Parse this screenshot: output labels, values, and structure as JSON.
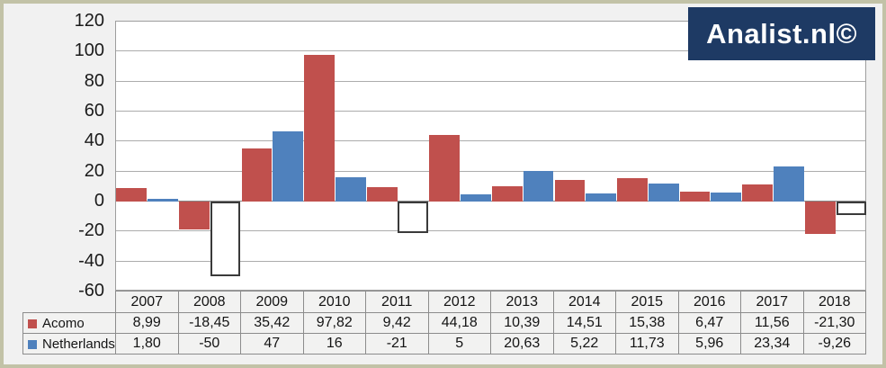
{
  "logo": {
    "text": "Analist.nl©"
  },
  "colors": {
    "acomo": "#C0504D",
    "netherlands": "#4F81BD",
    "logo_bg": "#1E3A64",
    "logo_text": "#FFFFFF",
    "page_bg": "#F1F1F1",
    "frame_border": "#C2C2A7",
    "gridline": "#ACACAC",
    "zero_line": "#878787",
    "table_border": "#8C8C8C",
    "negative_invert_fill": "#FFFFFF",
    "negative_invert_border": "#3A3A3A"
  },
  "chart_data": {
    "type": "bar",
    "title": "",
    "xlabel": "",
    "ylabel": "",
    "categories": [
      "2007",
      "2008",
      "2009",
      "2010",
      "2011",
      "2012",
      "2013",
      "2014",
      "2015",
      "2016",
      "2017",
      "2018"
    ],
    "series": [
      {
        "name": "Acomo",
        "color_key": "acomo",
        "invert_if_negative": false,
        "values": [
          8.99,
          -18.45,
          35.42,
          97.82,
          9.42,
          44.18,
          10.39,
          14.51,
          15.38,
          6.47,
          11.56,
          -21.3
        ]
      },
      {
        "name": "Netherlands",
        "color_key": "netherlands",
        "invert_if_negative": true,
        "values": [
          1.8,
          -50,
          47,
          16,
          -21,
          5,
          20.63,
          5.22,
          11.73,
          5.96,
          23.34,
          -9.26
        ]
      }
    ],
    "ylim": [
      -60,
      120
    ],
    "yticks": [
      120,
      100,
      80,
      60,
      40,
      20,
      0,
      -20,
      -40,
      -60
    ],
    "grid": true,
    "legend_position": "table-left-column"
  },
  "table": {
    "years": [
      "2007",
      "2008",
      "2009",
      "2010",
      "2011",
      "2012",
      "2013",
      "2014",
      "2015",
      "2016",
      "2017",
      "2018"
    ],
    "rows": [
      {
        "label": "Acomo",
        "color_key": "acomo",
        "values": [
          "8,99",
          "-18,45",
          "35,42",
          "97,82",
          "9,42",
          "44,18",
          "10,39",
          "14,51",
          "15,38",
          "6,47",
          "11,56",
          "-21,30"
        ]
      },
      {
        "label": "Netherlands",
        "color_key": "netherlands",
        "values": [
          "1,80",
          "-50",
          "47",
          "16",
          "-21",
          "5",
          "20,63",
          "5,22",
          "11,73",
          "5,96",
          "23,34",
          "-9,26"
        ]
      }
    ]
  }
}
